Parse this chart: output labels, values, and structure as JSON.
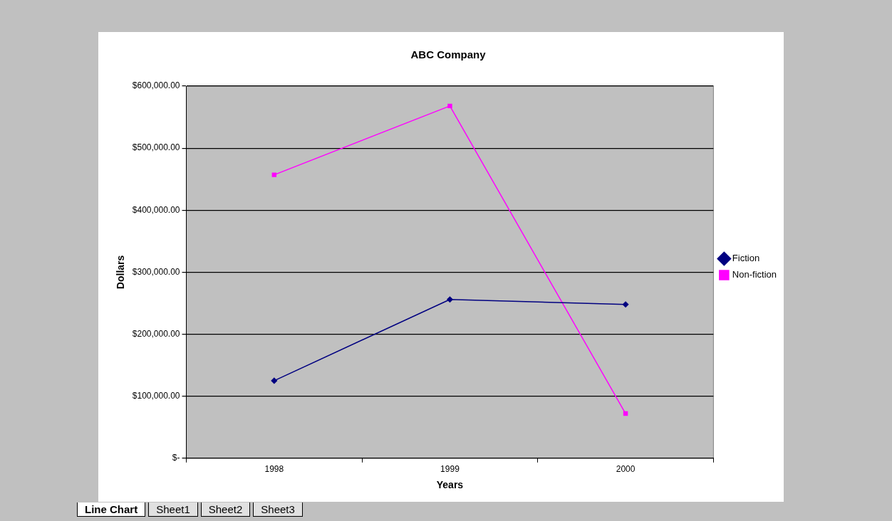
{
  "chart_data": {
    "type": "line",
    "title": "ABC Company",
    "xlabel": "Years",
    "ylabel": "Dollars",
    "categories": [
      "1998",
      "1999",
      "2000"
    ],
    "series": [
      {
        "name": "Fiction",
        "color": "#000080",
        "marker": "diamond",
        "values": [
          125000,
          256000,
          248000
        ]
      },
      {
        "name": "Non-fiction",
        "color": "#ff00ff",
        "marker": "square",
        "values": [
          457000,
          568000,
          72000
        ]
      }
    ],
    "ylim": [
      0,
      600000
    ],
    "yticks": [
      {
        "value": 0,
        "label": "$-"
      },
      {
        "value": 100000,
        "label": "$100,000.00"
      },
      {
        "value": 200000,
        "label": "$200,000.00"
      },
      {
        "value": 300000,
        "label": "$300,000.00"
      },
      {
        "value": 400000,
        "label": "$400,000.00"
      },
      {
        "value": 500000,
        "label": "$500,000.00"
      },
      {
        "value": 600000,
        "label": "$600,000.00"
      }
    ],
    "grid": "y",
    "legend": "right",
    "line_style": "solid",
    "annotations": [
      "Line Chart",
      "Sheet1",
      "Sheet2",
      "Sheet3"
    ]
  }
}
